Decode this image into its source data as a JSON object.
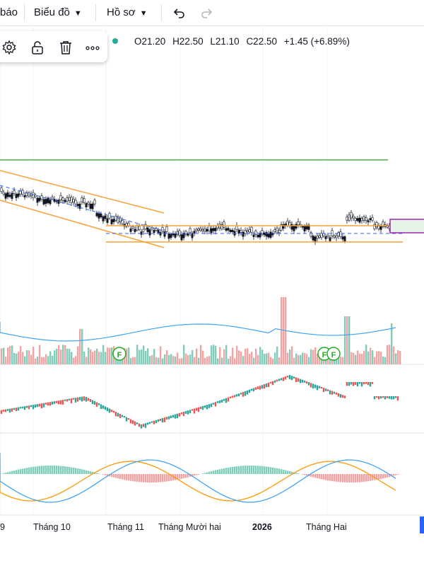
{
  "toolbar": {
    "alert_partial": "báo",
    "chart_menu": "Biểu đồ",
    "profile_menu": "Hồ sơ",
    "undo_icon": "undo-icon",
    "redo_icon": "redo-icon"
  },
  "floating_tools": {
    "settings_icon": "gear-icon",
    "lock_icon": "lock-icon",
    "delete_icon": "trash-icon",
    "more_icon": "more-icon"
  },
  "ohlc": {
    "open": "O21.20",
    "high": "H22.50",
    "low": "L21.10",
    "close": "C22.50",
    "change": "+1.45 (+6.89%)"
  },
  "time_axis": {
    "labels": [
      "9",
      "Tháng 10",
      "Tháng 11",
      "Tháng Mười hai",
      "2026",
      "Tháng Hai"
    ],
    "bold_label": "2026"
  },
  "colors": {
    "up": "#26a69a",
    "down": "#ef5350",
    "channel": "#f7a23a",
    "resistance": "#4caf50",
    "selection": "#9c27b0",
    "ma_line": "#2962ff",
    "macd_signal": "#ff9800"
  },
  "markers": {
    "event_label": "F"
  }
}
